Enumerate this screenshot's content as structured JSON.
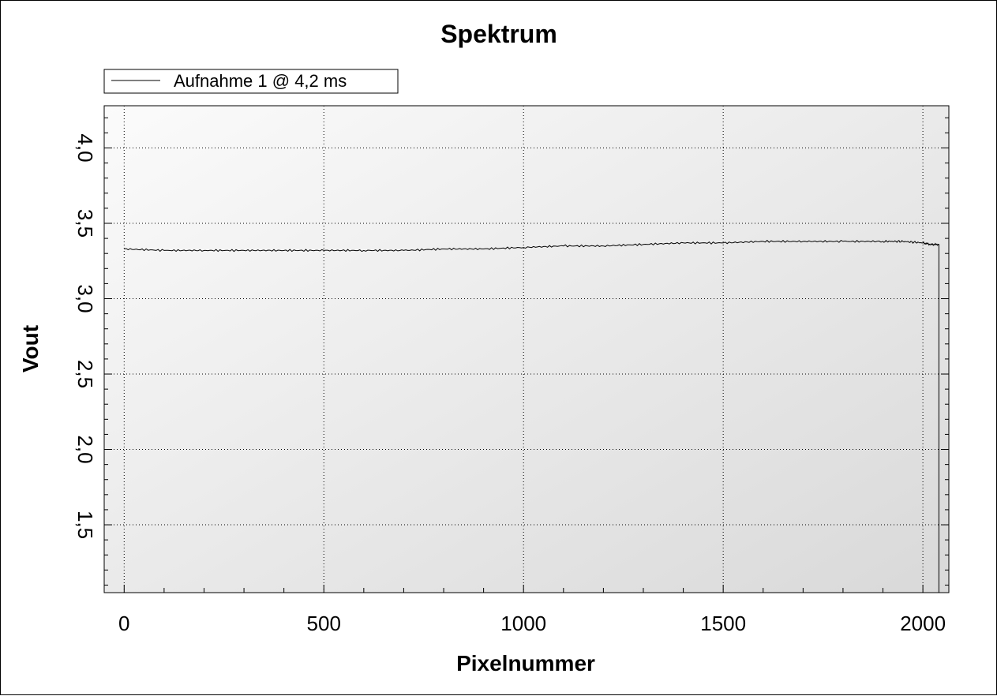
{
  "chart_data": {
    "type": "line",
    "title": "Spektrum",
    "xlabel": "Pixelnummer",
    "ylabel": "Vout",
    "xlim": [
      -50,
      2065
    ],
    "ylim": [
      1.05,
      4.28
    ],
    "x_ticks": [
      0,
      500,
      1000,
      1500,
      2000
    ],
    "x_tick_labels": [
      "0",
      "500",
      "1000",
      "1500",
      "2000"
    ],
    "y_ticks": [
      1.5,
      2.0,
      2.5,
      3.0,
      3.5,
      4.0
    ],
    "y_tick_labels": [
      "1,5",
      "2,0",
      "2,5",
      "3,0",
      "3,5",
      "4,0"
    ],
    "grid": true,
    "legend_position": "top-left",
    "series": [
      {
        "name": "Aufnahme 1 @ 4,2 ms",
        "color": "#000000",
        "x": [
          0,
          100,
          200,
          300,
          400,
          500,
          600,
          700,
          800,
          900,
          1000,
          1100,
          1200,
          1300,
          1400,
          1500,
          1600,
          1700,
          1800,
          1900,
          1950,
          2000,
          2020,
          2040,
          2040
        ],
        "y": [
          3.33,
          3.32,
          3.32,
          3.32,
          3.32,
          3.32,
          3.32,
          3.32,
          3.33,
          3.33,
          3.34,
          3.35,
          3.35,
          3.36,
          3.37,
          3.37,
          3.38,
          3.38,
          3.38,
          3.38,
          3.38,
          3.37,
          3.36,
          3.36,
          1.05
        ]
      }
    ]
  },
  "colors": {
    "plot_bg_light": "#fbfbfb",
    "plot_bg_dark": "#d9d9d9",
    "grid": "#000000",
    "line": "#000000"
  }
}
